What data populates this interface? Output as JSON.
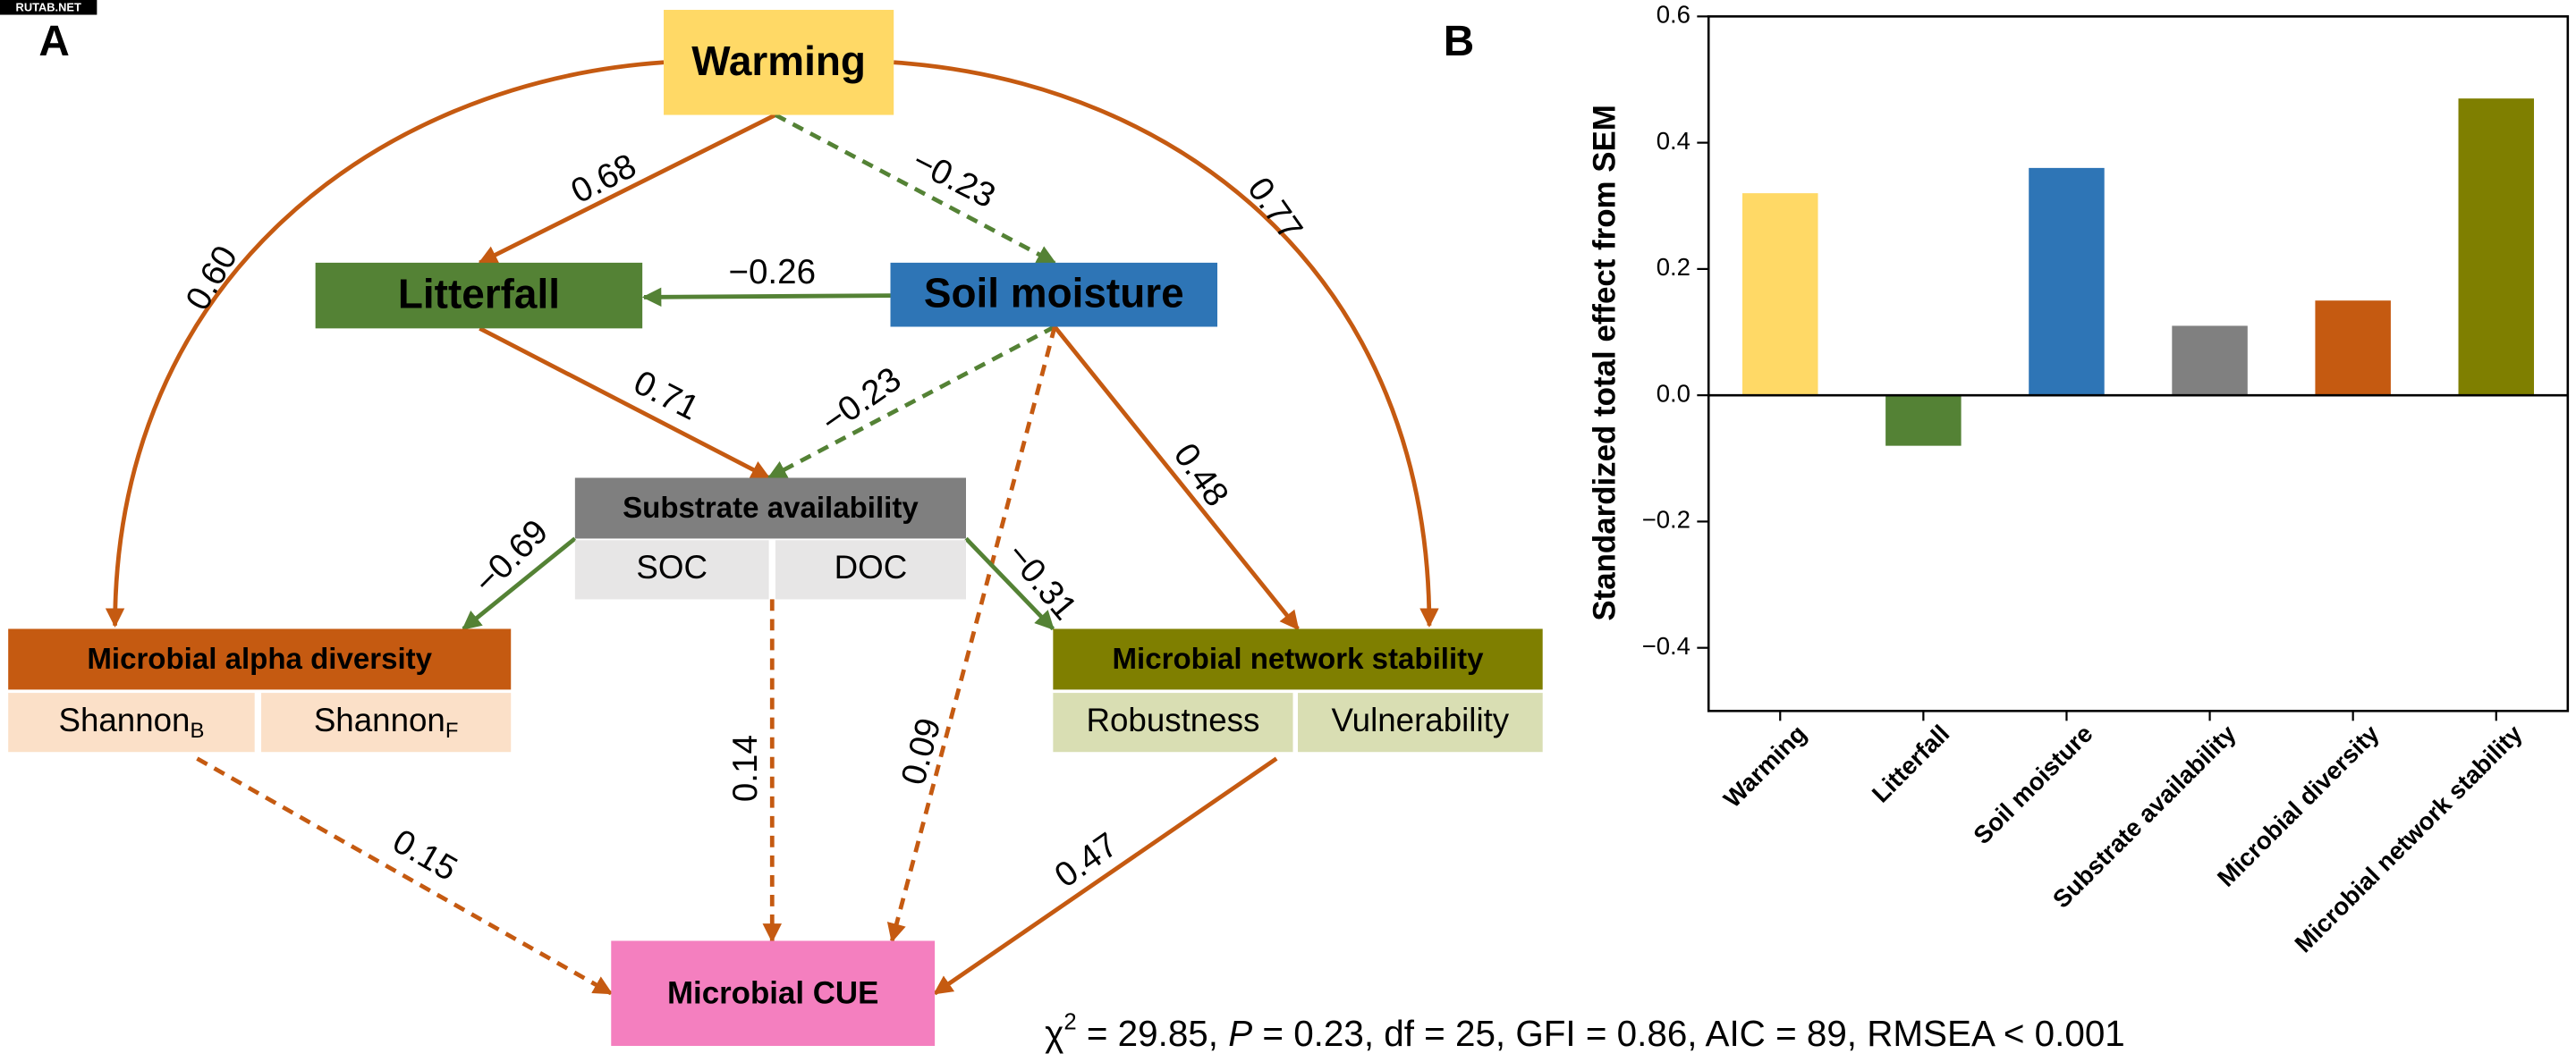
{
  "watermark": "RUTAB.NET",
  "diagram": {
    "panel_label": "A",
    "nodes": [
      {
        "label": "Warming",
        "color": "#FFD966"
      },
      {
        "label": "Litterfall",
        "color": "#548235"
      },
      {
        "label": "Soil moisture",
        "color": "#2E75B6"
      },
      {
        "label": "Substrate availability",
        "color": "#7F7F7F",
        "parts_color": "#E7E6E6",
        "parts": [
          "SOC",
          "DOC"
        ]
      },
      {
        "label": "Microbial alpha diversity",
        "color": "#C55A11",
        "parts_color": "#FBE0C8",
        "parts": [
          {
            "text": "Shannon",
            "sub": "B"
          },
          {
            "text": "Shannon",
            "sub": "F"
          }
        ]
      },
      {
        "label": "Microbial network stability",
        "color": "#7F7F00",
        "parts_color": "#D9DEB3",
        "parts": [
          "Robustness",
          "Vulnerability"
        ]
      },
      {
        "label": "Microbial CUE",
        "color": "#F47FBF"
      }
    ],
    "edges": [
      {
        "label": "0.68",
        "color": "#C55A11",
        "style": "solid"
      },
      {
        "label": "−0.23",
        "color": "#548235",
        "style": "dashed"
      },
      {
        "label": "0.60",
        "color": "#C55A11",
        "style": "solid"
      },
      {
        "label": "0.77",
        "color": "#C55A11",
        "style": "solid"
      },
      {
        "label": "−0.26",
        "color": "#548235",
        "style": "solid"
      },
      {
        "label": "0.71",
        "color": "#C55A11",
        "style": "solid"
      },
      {
        "label": "−0.23",
        "color": "#548235",
        "style": "dashed"
      },
      {
        "label": "0.48",
        "color": "#C55A11",
        "style": "solid"
      },
      {
        "label": "0.09",
        "color": "#C55A11",
        "style": "dashed"
      },
      {
        "label": "−0.69",
        "color": "#548235",
        "style": "solid"
      },
      {
        "label": "−0.31",
        "color": "#548235",
        "style": "solid"
      },
      {
        "label": "0.14",
        "color": "#C55A11",
        "style": "dashed"
      },
      {
        "label": "0.15",
        "color": "#C55A11",
        "style": "dashed"
      },
      {
        "label": "0.47",
        "color": "#C55A11",
        "style": "solid"
      }
    ],
    "fit_statistics": [
      "χ",
      "2",
      " = 29.85, ",
      "P",
      " = 0.23, df = 25, GFI = 0.86, AIC = 89, RMSEA < 0.001"
    ]
  },
  "chart_data": {
    "type": "bar",
    "panel_label": "B",
    "y_label": "Standardized total effect from SEM",
    "categories": [
      "Warming",
      "Litterfall",
      "Soil moisture",
      "Substrate availability",
      "Microbial diversity",
      "Microbial network stability"
    ],
    "values": [
      0.32,
      -0.08,
      0.36,
      0.11,
      0.15,
      0.47
    ],
    "colors": [
      "#FFD966",
      "#548235",
      "#2E75B6",
      "#808080",
      "#C55A11",
      "#7F7F00"
    ],
    "ylim": [
      -0.5,
      0.6
    ],
    "yticks": [
      0.6,
      0.4,
      0.2,
      {
        "value": 0,
        "label": "0.0"
      },
      {
        "value": -0.2,
        "label": "−0.2"
      },
      {
        "value": -0.4,
        "label": "−0.4"
      }
    ]
  }
}
